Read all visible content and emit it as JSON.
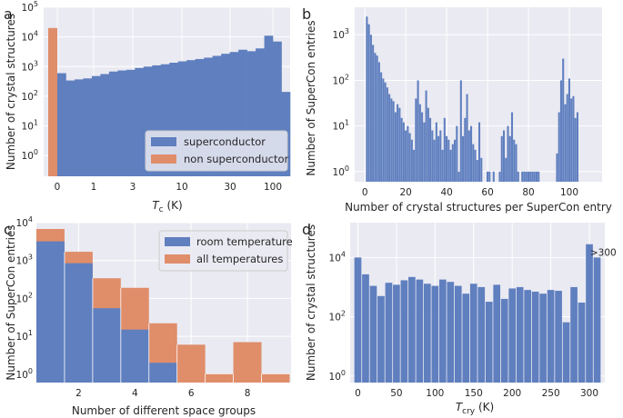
{
  "colors": {
    "blue": "#5f7fbf",
    "orange": "#e08d6a"
  },
  "chart_data": [
    {
      "panel": "a",
      "type": "bar",
      "scale": "log",
      "xlabel_main": "T",
      "xlabel_sub": "c",
      "xlabel_tail": " (K)",
      "ylabel": "Number of crystal structures",
      "ylim": [
        0.2,
        100000
      ],
      "xticks": [
        "0",
        "1",
        "3",
        "10",
        "30",
        "100"
      ],
      "yticks": [
        {
          "base": "10",
          "exp": "0",
          "v": 1
        },
        {
          "base": "10",
          "exp": "1",
          "v": 10
        },
        {
          "base": "10",
          "exp": "2",
          "v": 100
        },
        {
          "base": "10",
          "exp": "3",
          "v": 1000
        },
        {
          "base": "10",
          "exp": "4",
          "v": 10000
        },
        {
          "base": "10",
          "exp": "5",
          "v": 100000
        }
      ],
      "legend": [
        "superconductor",
        "non superconductor"
      ],
      "series": [
        {
          "name": "superconductor",
          "values": [
            600,
            340,
            370,
            400,
            480,
            560,
            680,
            740,
            780,
            900,
            1000,
            1100,
            1200,
            1350,
            1500,
            1650,
            1800,
            2000,
            2300,
            2700,
            3100,
            3700,
            3300,
            4100,
            11000,
            7000,
            140
          ]
        },
        {
          "name": "non superconductor",
          "values": [
            20000
          ]
        }
      ]
    },
    {
      "panel": "b",
      "type": "bar",
      "scale": "log",
      "xlabel": "Number of crystal structures per SuperCon entry",
      "ylabel": "Number of SuperCon entries",
      "ylim": [
        0.6,
        4000
      ],
      "xlim": [
        -5,
        116
      ],
      "xticks": [
        "0",
        "20",
        "40",
        "60",
        "80",
        "100"
      ],
      "yticks": [
        {
          "base": "10",
          "exp": "0",
          "v": 1
        },
        {
          "base": "10",
          "exp": "1",
          "v": 10
        },
        {
          "base": "10",
          "exp": "2",
          "v": 100
        },
        {
          "base": "10",
          "exp": "3",
          "v": 1000
        }
      ],
      "x": [
        1,
        2,
        3,
        4,
        5,
        6,
        7,
        8,
        9,
        10,
        11,
        12,
        13,
        14,
        15,
        16,
        17,
        18,
        19,
        20,
        21,
        22,
        23,
        24,
        25,
        26,
        27,
        28,
        29,
        30,
        31,
        32,
        33,
        34,
        35,
        36,
        37,
        38,
        39,
        40,
        41,
        42,
        43,
        44,
        45,
        46,
        47,
        48,
        49,
        50,
        51,
        52,
        53,
        54,
        55,
        56,
        57,
        60,
        61,
        63,
        66,
        67,
        68,
        69,
        70,
        71,
        72,
        73,
        74,
        75,
        77,
        78,
        79,
        80,
        81,
        82,
        83,
        84,
        85,
        94,
        95,
        96,
        97,
        98,
        99,
        100,
        101,
        102,
        103,
        104
      ],
      "values": [
        2500,
        1700,
        1000,
        600,
        400,
        350,
        250,
        150,
        110,
        90,
        70,
        50,
        40,
        35,
        20,
        30,
        25,
        15,
        12,
        8,
        10,
        7,
        5,
        3,
        40,
        100,
        30,
        20,
        12,
        60,
        25,
        15,
        8,
        5,
        12,
        6,
        8,
        3,
        15,
        6,
        5,
        3,
        4,
        5,
        10,
        1,
        100,
        6,
        15,
        50,
        8,
        10,
        4,
        3,
        1.8,
        12,
        2,
        1,
        1,
        1,
        1,
        6,
        8,
        2,
        10,
        6,
        20,
        5,
        4,
        1,
        1,
        1,
        1,
        1,
        1,
        1,
        1,
        1,
        1,
        2.5,
        20,
        100,
        300,
        30,
        50,
        110,
        40,
        45,
        15,
        20
      ]
    },
    {
      "panel": "c",
      "type": "bar",
      "scale": "log",
      "xlabel": "Number of different space groups",
      "ylabel": "Number of SuperCon entries",
      "ylim": [
        0.6,
        10000
      ],
      "xlim": [
        0.5,
        9.55
      ],
      "xticks": [
        "2",
        "4",
        "6",
        "8"
      ],
      "yticks": [
        {
          "base": "10",
          "exp": "0",
          "v": 1
        },
        {
          "base": "10",
          "exp": "1",
          "v": 10
        },
        {
          "base": "10",
          "exp": "2",
          "v": 100
        },
        {
          "base": "10",
          "exp": "3",
          "v": 1000
        },
        {
          "base": "10",
          "exp": "4",
          "v": 10000
        }
      ],
      "legend": [
        "room temperature",
        "all temperatures"
      ],
      "series": [
        {
          "name": "all temperatures",
          "values": [
            6800,
            1700,
            340,
            190,
            22,
            6,
            1,
            7,
            1
          ]
        },
        {
          "name": "room temperature",
          "values": [
            3200,
            850,
            55,
            15,
            2,
            null,
            null,
            null,
            null
          ]
        }
      ]
    },
    {
      "panel": "d",
      "type": "bar",
      "scale": "log",
      "xlabel_main": "T",
      "xlabel_sub": "cry",
      "xlabel_tail": " (K)",
      "ylabel": "Number of crystal structures",
      "ylim": [
        0.6,
        150000
      ],
      "xlim": [
        -10,
        320
      ],
      "xticks": [
        "0",
        "50",
        "100",
        "150",
        "200",
        "250",
        "300"
      ],
      "yticks": [
        {
          "base": "10",
          "exp": "0",
          "v": 1
        },
        {
          "base": "10",
          "exp": "2",
          "v": 100
        },
        {
          "base": "10",
          "exp": "4",
          "v": 10000
        }
      ],
      "annotation": ">300",
      "bin_width": 10,
      "values": [
        10000,
        2700,
        1100,
        500,
        1400,
        1200,
        1700,
        2200,
        1800,
        1300,
        1100,
        1800,
        1500,
        1100,
        600,
        1300,
        1000,
        320,
        1200,
        400,
        900,
        1000,
        800,
        700,
        600,
        800,
        750,
        65,
        1000,
        300,
        28000,
        10000
      ]
    }
  ]
}
